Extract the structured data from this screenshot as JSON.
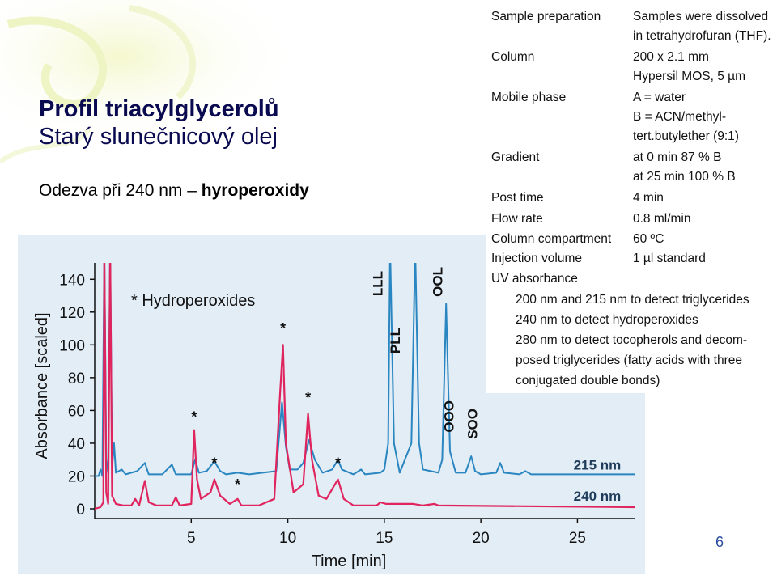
{
  "slide": {
    "title_line1": "Profil triacylglycerolů",
    "title_line2": "Starý slunečnicový olej",
    "subtitle_prefix": "Odezva při 240 nm – ",
    "subtitle_bold": "hyroperoxidy",
    "page_number": "6"
  },
  "conditions": {
    "rows": [
      {
        "label": "Sample preparation",
        "values": [
          "Samples were dissolved",
          "in tetrahydrofuran (THF)."
        ]
      },
      {
        "label": "Column",
        "values": [
          "200 x 2.1 mm",
          "Hypersil MOS, 5 µm"
        ]
      },
      {
        "label": "Mobile phase",
        "values": [
          "A = water",
          "B = ACN/methyl-",
          "tert.butylether (9:1)"
        ]
      },
      {
        "label": "Gradient",
        "values": [
          "at 0 min 87 % B",
          "at 25 min 100 % B"
        ]
      },
      {
        "label": "Post time",
        "values": [
          "4 min"
        ]
      },
      {
        "label": "Flow rate",
        "values": [
          "0.8 ml/min"
        ]
      },
      {
        "label": "Column compartment",
        "values": [
          "60 ºC"
        ]
      },
      {
        "label": "Injection volume",
        "values": [
          "1 µl standard"
        ]
      },
      {
        "label": "UV absorbance",
        "values": []
      }
    ],
    "uv_lines": [
      "200 nm and 215 nm to detect triglycerides",
      "240 nm to detect hydroperoxides",
      "280 nm to detect tocopherols and decom-",
      "posed triglycerides (fatty acids with three",
      "conjugated double bonds)"
    ]
  },
  "chart_data": {
    "type": "line",
    "xlabel": "Time [min]",
    "ylabel": "Absorbance [scaled]",
    "xlim": [
      0,
      28
    ],
    "ylim": [
      0,
      150
    ],
    "xticks": [
      5,
      10,
      15,
      20,
      25
    ],
    "yticks": [
      0,
      20,
      40,
      60,
      80,
      100,
      120,
      140
    ],
    "legend_text": "* Hydroperoxides",
    "grid": false,
    "colors": {
      "215 nm": "#2a86c0",
      "240 nm": "#e0245e",
      "panel": "#e3edf6"
    },
    "series": [
      {
        "name": "215 nm",
        "baseline": 20,
        "points": [
          [
            0,
            20
          ],
          [
            0.2,
            20
          ],
          [
            0.3,
            24
          ],
          [
            0.4,
            20
          ],
          [
            0.5,
            160
          ],
          [
            0.6,
            30
          ],
          [
            0.7,
            22
          ],
          [
            0.8,
            160
          ],
          [
            0.9,
            25
          ],
          [
            1.0,
            40
          ],
          [
            1.1,
            22
          ],
          [
            1.4,
            24
          ],
          [
            1.6,
            21
          ],
          [
            2.2,
            23
          ],
          [
            2.6,
            28
          ],
          [
            2.8,
            21
          ],
          [
            3.5,
            21
          ],
          [
            4.0,
            27
          ],
          [
            4.2,
            21
          ],
          [
            5.0,
            21
          ],
          [
            5.2,
            30
          ],
          [
            5.4,
            22
          ],
          [
            5.8,
            23
          ],
          [
            6.2,
            29
          ],
          [
            6.5,
            23
          ],
          [
            6.8,
            21
          ],
          [
            7.4,
            22
          ],
          [
            8.0,
            21
          ],
          [
            9.4,
            23
          ],
          [
            9.7,
            65
          ],
          [
            9.9,
            38
          ],
          [
            10.1,
            24
          ],
          [
            10.5,
            24
          ],
          [
            10.8,
            28
          ],
          [
            11.1,
            42
          ],
          [
            11.4,
            30
          ],
          [
            11.8,
            22
          ],
          [
            12.3,
            24
          ],
          [
            12.6,
            30
          ],
          [
            12.8,
            24
          ],
          [
            13.4,
            21
          ],
          [
            13.8,
            24
          ],
          [
            14.0,
            21
          ],
          [
            14.8,
            22
          ],
          [
            15.0,
            24
          ],
          [
            15.2,
            40
          ],
          [
            15.3,
            160
          ],
          [
            15.5,
            40
          ],
          [
            15.8,
            22
          ],
          [
            16.4,
            40
          ],
          [
            16.6,
            160
          ],
          [
            16.8,
            40
          ],
          [
            17.0,
            24
          ],
          [
            17.8,
            22
          ],
          [
            18.0,
            30
          ],
          [
            18.2,
            125
          ],
          [
            18.4,
            35
          ],
          [
            18.7,
            22
          ],
          [
            19.2,
            22
          ],
          [
            19.5,
            32
          ],
          [
            19.7,
            23
          ],
          [
            20.0,
            21
          ],
          [
            20.8,
            22
          ],
          [
            21.0,
            28
          ],
          [
            21.2,
            22
          ],
          [
            22.0,
            21
          ],
          [
            22.3,
            23
          ],
          [
            22.6,
            21
          ],
          [
            28,
            21
          ]
        ]
      },
      {
        "name": "240 nm",
        "baseline": 1,
        "points": [
          [
            0,
            0
          ],
          [
            0.3,
            1
          ],
          [
            0.45,
            4
          ],
          [
            0.5,
            160
          ],
          [
            0.6,
            10
          ],
          [
            0.7,
            3
          ],
          [
            0.8,
            160
          ],
          [
            0.9,
            8
          ],
          [
            1.1,
            3
          ],
          [
            1.5,
            2
          ],
          [
            1.9,
            2
          ],
          [
            2.1,
            6
          ],
          [
            2.3,
            2
          ],
          [
            2.6,
            17
          ],
          [
            2.8,
            4
          ],
          [
            3.2,
            2
          ],
          [
            4.0,
            2
          ],
          [
            4.2,
            7
          ],
          [
            4.4,
            2
          ],
          [
            5.0,
            3
          ],
          [
            5.15,
            48
          ],
          [
            5.3,
            18
          ],
          [
            5.5,
            6
          ],
          [
            6.0,
            10
          ],
          [
            6.2,
            18
          ],
          [
            6.5,
            8
          ],
          [
            7.0,
            3
          ],
          [
            7.4,
            6
          ],
          [
            7.6,
            2
          ],
          [
            8.5,
            2
          ],
          [
            9.3,
            6
          ],
          [
            9.6,
            70
          ],
          [
            9.75,
            100
          ],
          [
            9.9,
            40
          ],
          [
            10.3,
            10
          ],
          [
            10.8,
            15
          ],
          [
            11.05,
            58
          ],
          [
            11.25,
            30
          ],
          [
            11.6,
            8
          ],
          [
            12.0,
            6
          ],
          [
            12.4,
            14
          ],
          [
            12.6,
            18
          ],
          [
            12.9,
            6
          ],
          [
            13.4,
            2
          ],
          [
            14.0,
            2
          ],
          [
            14.6,
            2
          ],
          [
            14.8,
            4
          ],
          [
            15.1,
            3
          ],
          [
            15.5,
            3
          ],
          [
            16.5,
            3
          ],
          [
            17.0,
            2
          ],
          [
            17.6,
            3
          ],
          [
            17.8,
            2
          ],
          [
            28,
            1
          ]
        ]
      }
    ],
    "peak_labels": [
      "LLL",
      "PLL",
      "OOL",
      "OOO",
      "SOO"
    ],
    "trace_labels": [
      "215 nm",
      "240 nm"
    ]
  }
}
